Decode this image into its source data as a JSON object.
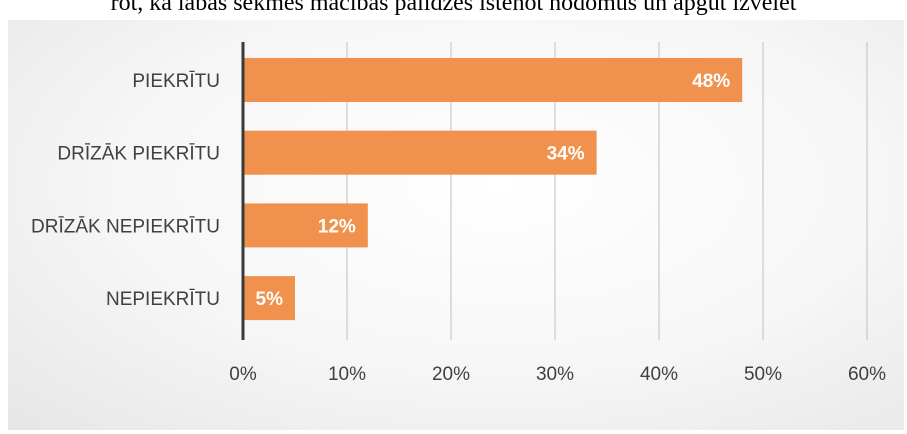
{
  "header": {
    "partial_text": "rot, ka labas sekmes macibas palidzes istenot nodomus un apgut izvelet"
  },
  "chart_data": {
    "type": "bar",
    "orientation": "horizontal",
    "categories": [
      "PIEKRĪTU",
      "DRĪZĀK PIEKRĪTU",
      "DRĪZĀK NEPIEKRĪTU",
      "NEPIEKRĪTU"
    ],
    "values": [
      48,
      34,
      12,
      5
    ],
    "data_labels": [
      "48%",
      "34%",
      "12%",
      "5%"
    ],
    "x_ticks": [
      "0%",
      "10%",
      "20%",
      "30%",
      "40%",
      "50%",
      "60%"
    ],
    "xlim": [
      0,
      60
    ],
    "grid": true,
    "title": "",
    "xlabel": "",
    "ylabel": "",
    "bar_color": "#F0914D",
    "axis_color": "#3a3a3a",
    "grid_color": "#bfbfbf"
  }
}
